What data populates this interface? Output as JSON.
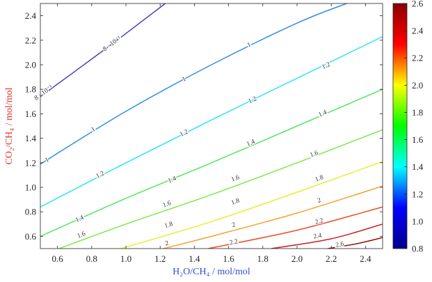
{
  "chart_data": {
    "type": "contour",
    "xlabel": "H₂O/CH₄ / mol/mol",
    "ylabel": "CO₂/CH₄ / mol/mol",
    "xlim": [
      0.5,
      2.5
    ],
    "ylim": [
      0.5,
      2.5
    ],
    "x_ticks": [
      "0.6",
      "0.8",
      "1.0",
      "1.2",
      "1.4",
      "1.6",
      "1.8",
      "2.0",
      "2.2",
      "2.4"
    ],
    "y_ticks": [
      "0.6",
      "0.8",
      "1.0",
      "1.2",
      "1.4",
      "1.6",
      "1.8",
      "2.0",
      "2.2",
      "2.4"
    ],
    "colorbar": {
      "range": [
        0.8,
        2.6
      ],
      "ticks": [
        "0.8",
        "1.0",
        "1.2",
        "1.4",
        "1.6",
        "1.8",
        "2.0",
        "2.2",
        "2.4",
        "2.6"
      ],
      "colormap": [
        "#00008b",
        "#0000ff",
        "#00ffff",
        "#00ff00",
        "#ffff00",
        "#ff0000",
        "#8b0000"
      ]
    },
    "contours": [
      {
        "level": 0.8,
        "text": "8 · 10⁻¹",
        "color": "#4040b8",
        "points": [
          [
            0.5,
            1.74
          ],
          [
            0.9,
            2.15
          ],
          [
            1.23,
            2.5
          ]
        ]
      },
      {
        "level": 1.0,
        "text": "1",
        "color": "#2f8fe0",
        "points": [
          [
            0.5,
            1.19
          ],
          [
            1.0,
            1.62
          ],
          [
            1.5,
            2.0
          ],
          [
            2.0,
            2.34
          ],
          [
            2.29,
            2.5
          ]
        ]
      },
      {
        "level": 1.2,
        "text": "1.2",
        "color": "#2ee6f0",
        "points": [
          [
            0.5,
            0.84
          ],
          [
            1.0,
            1.2
          ],
          [
            1.5,
            1.55
          ],
          [
            2.0,
            1.89
          ],
          [
            2.5,
            2.23
          ]
        ]
      },
      {
        "level": 1.4,
        "text": "1.4",
        "color": "#4fe860",
        "points": [
          [
            0.5,
            0.6
          ],
          [
            1.0,
            0.91
          ],
          [
            1.5,
            1.2
          ],
          [
            2.0,
            1.5
          ],
          [
            2.5,
            1.8
          ]
        ]
      },
      {
        "level": 1.6,
        "text": "1.6",
        "color": "#7ee84a",
        "points": [
          [
            0.61,
            0.5
          ],
          [
            1.0,
            0.7
          ],
          [
            1.5,
            0.94
          ],
          [
            2.0,
            1.2
          ],
          [
            2.5,
            1.47
          ]
        ]
      },
      {
        "level": 1.8,
        "text": "1.8",
        "color": "#e8ee2a",
        "points": [
          [
            0.97,
            0.5
          ],
          [
            1.5,
            0.72
          ],
          [
            2.0,
            0.96
          ],
          [
            2.5,
            1.21
          ]
        ]
      },
      {
        "level": 2.0,
        "text": "2",
        "color": "#f5a030",
        "points": [
          [
            1.22,
            0.5
          ],
          [
            1.5,
            0.6
          ],
          [
            2.0,
            0.79
          ],
          [
            2.5,
            1.01
          ]
        ]
      },
      {
        "level": 2.2,
        "text": "2.2",
        "color": "#f04a25",
        "points": [
          [
            1.48,
            0.5
          ],
          [
            2.0,
            0.65
          ],
          [
            2.5,
            0.84
          ]
        ]
      },
      {
        "level": 2.4,
        "text": "2.4",
        "color": "#cc2020",
        "points": [
          [
            1.85,
            0.5
          ],
          [
            2.2,
            0.58
          ],
          [
            2.5,
            0.7
          ]
        ]
      },
      {
        "level": 2.6,
        "text": "2.6",
        "color": "#8b1010",
        "points": [
          [
            2.18,
            0.5
          ],
          [
            2.35,
            0.54
          ],
          [
            2.5,
            0.59
          ]
        ]
      }
    ],
    "contour_labels": [
      {
        "level": 0.8,
        "text": "8 · 10⁻¹",
        "at": [
          0.92,
          2.17
        ]
      },
      {
        "level": 0.8,
        "text": "8 · 10⁻¹",
        "at": [
          0.52,
          1.77
        ]
      },
      {
        "level": 1.0,
        "text": "1",
        "at": [
          1.72,
          2.16
        ]
      },
      {
        "level": 1.0,
        "text": "1",
        "at": [
          1.34,
          1.88
        ]
      },
      {
        "level": 1.0,
        "text": "1",
        "at": [
          0.81,
          1.47
        ]
      },
      {
        "level": 1.0,
        "text": "1",
        "at": [
          0.54,
          1.22
        ]
      },
      {
        "level": 1.2,
        "text": "1.2",
        "at": [
          2.17,
          1.99
        ]
      },
      {
        "level": 1.2,
        "text": "1.2",
        "at": [
          1.74,
          1.71
        ]
      },
      {
        "level": 1.2,
        "text": "1.2",
        "at": [
          1.34,
          1.44
        ]
      },
      {
        "level": 1.2,
        "text": "1.2",
        "at": [
          0.85,
          1.1
        ]
      },
      {
        "level": 1.4,
        "text": "1.4",
        "at": [
          2.15,
          1.6
        ]
      },
      {
        "level": 1.4,
        "text": "1.4",
        "at": [
          1.73,
          1.36
        ]
      },
      {
        "level": 1.4,
        "text": "1.4",
        "at": [
          1.27,
          1.06
        ]
      },
      {
        "level": 1.4,
        "text": "1.4",
        "at": [
          0.73,
          0.74
        ]
      },
      {
        "level": 1.6,
        "text": "1.6",
        "at": [
          2.1,
          1.27
        ]
      },
      {
        "level": 1.6,
        "text": "1.6",
        "at": [
          1.64,
          1.07
        ]
      },
      {
        "level": 1.6,
        "text": "1.6",
        "at": [
          1.24,
          0.86
        ]
      },
      {
        "level": 1.6,
        "text": "1.6",
        "at": [
          0.74,
          0.61
        ]
      },
      {
        "level": 1.8,
        "text": "1.8",
        "at": [
          2.13,
          1.07
        ]
      },
      {
        "level": 1.8,
        "text": "1.8",
        "at": [
          1.64,
          0.88
        ]
      },
      {
        "level": 1.8,
        "text": "1.8",
        "at": [
          1.25,
          0.69
        ]
      },
      {
        "level": 2.0,
        "text": "2",
        "at": [
          2.13,
          0.89
        ]
      },
      {
        "level": 2.0,
        "text": "2",
        "at": [
          1.63,
          0.69
        ]
      },
      {
        "level": 2.0,
        "text": "2",
        "at": [
          1.24,
          0.54
        ]
      },
      {
        "level": 2.2,
        "text": "2.2",
        "at": [
          2.13,
          0.72
        ]
      },
      {
        "level": 2.2,
        "text": "2.2",
        "at": [
          1.63,
          0.55
        ]
      },
      {
        "level": 2.4,
        "text": "2.4",
        "at": [
          2.12,
          0.6
        ]
      },
      {
        "level": 2.6,
        "text": "2.6",
        "at": [
          2.25,
          0.53
        ]
      }
    ],
    "grid": false,
    "legend": "colorbar-right"
  }
}
